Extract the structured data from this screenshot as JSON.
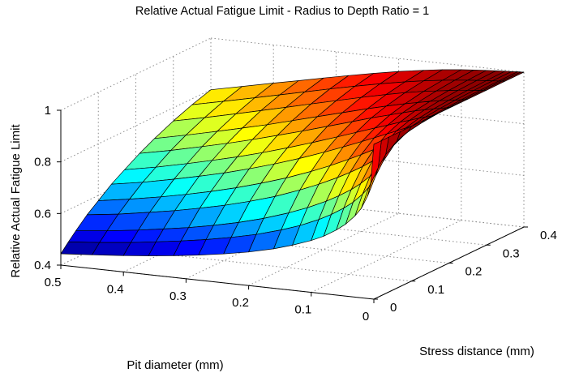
{
  "chart_data": {
    "type": "surface",
    "title": "Relative Actual Fatigue Limit - Radius to Depth Ratio = 1",
    "xlabel": "Pit diameter (mm)",
    "ylabel": "Stress distance (mm)",
    "zlabel": "Relative Actual Fatigue Limit",
    "xlim": [
      0,
      0.5
    ],
    "ylim": [
      0,
      0.4
    ],
    "zlim": [
      0.4,
      1.0
    ],
    "xticks": [
      "0.5",
      "0.4",
      "0.3",
      "0.2",
      "0.1",
      "0"
    ],
    "yticks": [
      "0",
      "0.1",
      "0.2",
      "0.3",
      "0.4"
    ],
    "zticks": [
      "0.4",
      "0.6",
      "0.8",
      "1"
    ],
    "grid": true,
    "colormap": "jet",
    "pit_diameter": [
      0,
      0.005,
      0.01,
      0.02,
      0.03,
      0.045,
      0.06,
      0.08,
      0.1,
      0.13,
      0.16,
      0.2,
      0.24,
      0.28,
      0.32,
      0.36,
      0.4,
      0.45,
      0.5
    ],
    "stress_distance": [
      0,
      0.02,
      0.04,
      0.07,
      0.1,
      0.135,
      0.17,
      0.21,
      0.25,
      0.3,
      0.35,
      0.4
    ],
    "relative_fatigue_limit": [
      [
        1.0,
        1.0,
        1.0,
        1.0,
        1.0,
        1.0,
        1.0,
        1.0,
        1.0,
        1.0,
        1.0,
        1.0
      ],
      [
        0.846,
        0.895,
        0.931,
        0.963,
        0.978,
        0.987,
        0.992,
        0.995,
        0.997,
        0.998,
        0.999,
        0.999
      ],
      [
        0.797,
        0.856,
        0.9,
        0.945,
        0.967,
        0.981,
        0.988,
        0.992,
        0.995,
        0.997,
        0.998,
        0.999
      ],
      [
        0.747,
        0.814,
        0.865,
        0.92,
        0.95,
        0.971,
        0.981,
        0.987,
        0.991,
        0.994,
        0.996,
        0.997
      ],
      [
        0.715,
        0.785,
        0.84,
        0.9,
        0.935,
        0.961,
        0.974,
        0.983,
        0.988,
        0.992,
        0.994,
        0.996
      ],
      [
        0.679,
        0.75,
        0.808,
        0.873,
        0.914,
        0.945,
        0.962,
        0.975,
        0.982,
        0.988,
        0.991,
        0.993
      ],
      [
        0.652,
        0.723,
        0.781,
        0.849,
        0.894,
        0.93,
        0.951,
        0.967,
        0.976,
        0.983,
        0.988,
        0.991
      ],
      [
        0.623,
        0.693,
        0.751,
        0.821,
        0.869,
        0.91,
        0.934,
        0.954,
        0.966,
        0.976,
        0.983,
        0.987
      ],
      [
        0.601,
        0.668,
        0.725,
        0.796,
        0.846,
        0.89,
        0.918,
        0.941,
        0.956,
        0.969,
        0.977,
        0.983
      ],
      [
        0.575,
        0.637,
        0.692,
        0.762,
        0.813,
        0.861,
        0.893,
        0.921,
        0.939,
        0.956,
        0.967,
        0.975
      ],
      [
        0.553,
        0.612,
        0.664,
        0.732,
        0.783,
        0.833,
        0.868,
        0.899,
        0.921,
        0.941,
        0.955,
        0.965
      ],
      [
        0.53,
        0.584,
        0.632,
        0.696,
        0.747,
        0.798,
        0.835,
        0.87,
        0.895,
        0.919,
        0.937,
        0.95
      ],
      [
        0.512,
        0.562,
        0.606,
        0.667,
        0.716,
        0.766,
        0.804,
        0.841,
        0.869,
        0.896,
        0.917,
        0.932
      ],
      [
        0.497,
        0.543,
        0.584,
        0.641,
        0.688,
        0.737,
        0.775,
        0.814,
        0.843,
        0.873,
        0.896,
        0.913
      ],
      [
        0.484,
        0.527,
        0.565,
        0.619,
        0.663,
        0.71,
        0.748,
        0.787,
        0.817,
        0.849,
        0.874,
        0.893
      ],
      [
        0.473,
        0.513,
        0.549,
        0.599,
        0.641,
        0.687,
        0.724,
        0.762,
        0.793,
        0.826,
        0.852,
        0.872
      ],
      [
        0.463,
        0.5,
        0.534,
        0.582,
        0.621,
        0.665,
        0.701,
        0.739,
        0.77,
        0.803,
        0.83,
        0.852
      ],
      [
        0.453,
        0.487,
        0.518,
        0.562,
        0.599,
        0.64,
        0.674,
        0.711,
        0.742,
        0.775,
        0.803,
        0.826
      ],
      [
        0.444,
        0.476,
        0.505,
        0.546,
        0.58,
        0.619,
        0.651,
        0.686,
        0.716,
        0.749,
        0.777,
        0.8
      ]
    ]
  }
}
